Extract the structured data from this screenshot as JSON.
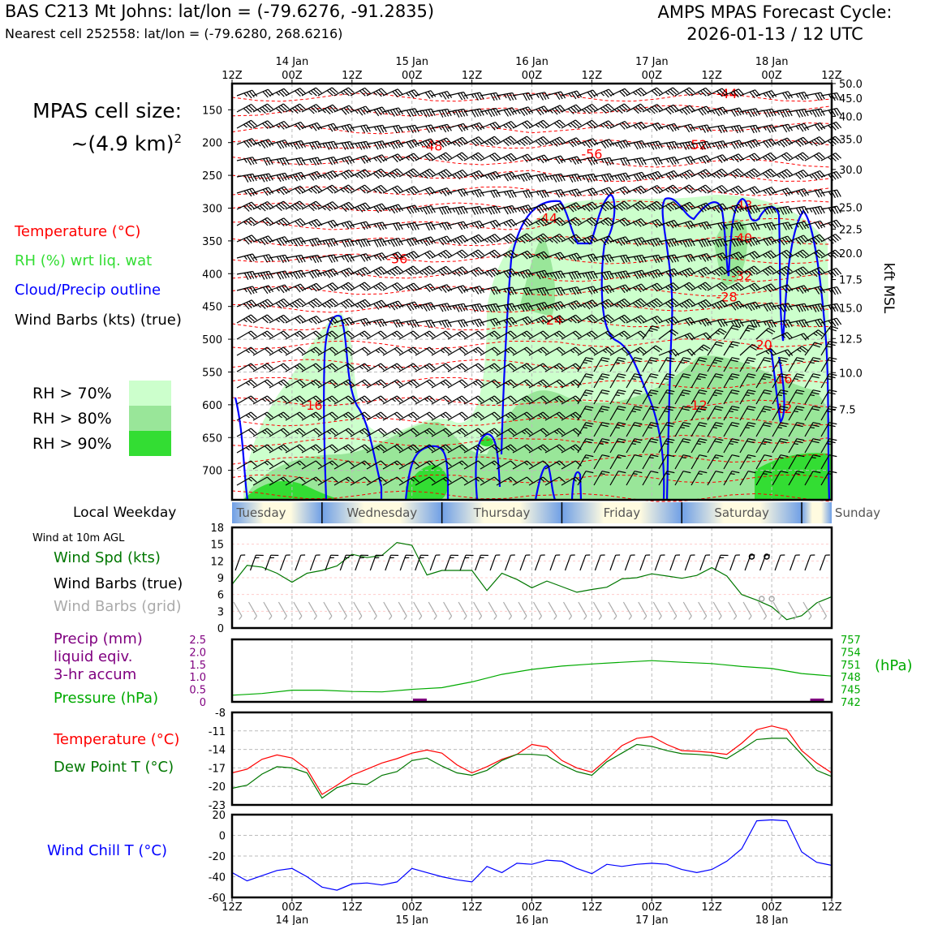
{
  "header": {
    "site_line": "BAS C213 Mt Johns: lat/lon = (-79.6276, -91.2835)",
    "cell_line": "Nearest cell 252558: lat/lon = (-79.6280, 268.6216)",
    "forecast_title": "AMPS MPAS Forecast Cycle:",
    "forecast_cycle": "2026-01-13 / 12 UTC"
  },
  "cell_size": {
    "line1": "MPAS cell size:",
    "line2": "~(4.9 km)",
    "sup": "2"
  },
  "legend": {
    "temperature": "Temperature (°C)",
    "rh": "RH (%) wrt liq. wat",
    "cloud": "Cloud/Precip outline",
    "wind": "Wind Barbs (kts) (true)",
    "rh70": "RH > 70%",
    "rh80": "RH > 80%",
    "rh90": "RH > 90%"
  },
  "colors": {
    "temperature": "#ff0000",
    "rh70": "#ccffcc",
    "rh80": "#99e699",
    "rh90": "#33dd33",
    "cloud": "#0000ff",
    "wind_speed": "#007700",
    "grid_barbs": "#aaaaaa",
    "precip": "#800080",
    "pressure": "#00aa00",
    "dewpoint": "#007700",
    "windchill": "#0000ff"
  },
  "weekday_band": {
    "label": "Local Weekday",
    "days": [
      "Tuesday",
      "Wednesday",
      "Thursday",
      "Friday",
      "Saturday",
      "Sunday"
    ]
  },
  "wind10m": {
    "heading": "Wind at 10m AGL",
    "spd_label": "Wind Spd (kts)",
    "barbs_true_label": "Wind Barbs (true)",
    "barbs_grid_label": "Wind Barbs (grid)"
  },
  "precip_pressure": {
    "precip_line1": "Precip (mm)",
    "precip_line2": "liquid eqiv.",
    "precip_line3": "3-hr accum",
    "pressure_label": "Pressure (hPa)",
    "pressure_unit": "(hPa)"
  },
  "temp_panel": {
    "temp_label": "Temperature (°C)",
    "dew_label": "Dew Point T (°C)"
  },
  "chill_panel": {
    "label": "Wind Chill T (°C)"
  },
  "chart_data": [
    {
      "type": "heatmap",
      "x_ticks_top": [
        "12Z",
        "00Z",
        "12Z",
        "00Z",
        "12Z",
        "00Z",
        "12Z",
        "00Z",
        "12Z",
        "00Z",
        "12Z"
      ],
      "x_dates": [
        "14 Jan",
        "15 Jan",
        "16 Jan",
        "17 Jan",
        "18 Jan"
      ],
      "y_pressure_ticks": [
        150,
        200,
        250,
        300,
        350,
        400,
        450,
        500,
        550,
        600,
        650,
        700
      ],
      "y_pressure_range": [
        110,
        745
      ],
      "y_kft_ticks": [
        "50.0",
        "45.0",
        "40.0",
        "35.0",
        "30.0",
        "25.0",
        "22.5",
        "20.0",
        "17.5",
        "15.0",
        "12.5",
        "10.0",
        "7.5"
      ],
      "y_kft_pressure": [
        110,
        132,
        160,
        195,
        241,
        299,
        332,
        369,
        409,
        452,
        499,
        551,
        607
      ],
      "ylabel_right": "kft MSL",
      "temperature_contour_labels": [
        {
          "text": "-44",
          "hour": 99,
          "p": 125
        },
        {
          "text": "-48",
          "hour": 40,
          "p": 205
        },
        {
          "text": "-56",
          "hour": 72,
          "p": 217
        },
        {
          "text": "-52",
          "hour": 93,
          "p": 203
        },
        {
          "text": "-48",
          "hour": 102,
          "p": 295
        },
        {
          "text": "-44",
          "hour": 63,
          "p": 315
        },
        {
          "text": "-40",
          "hour": 102,
          "p": 345
        },
        {
          "text": "-36",
          "hour": 33,
          "p": 377
        },
        {
          "text": "-32",
          "hour": 102,
          "p": 403
        },
        {
          "text": "-28",
          "hour": 99,
          "p": 435
        },
        {
          "text": "-24",
          "hour": 64,
          "p": 470
        },
        {
          "text": "-20",
          "hour": 106,
          "p": 508
        },
        {
          "text": "-16",
          "hour": 110,
          "p": 560
        },
        {
          "text": "-16",
          "hour": 16,
          "p": 600
        },
        {
          "text": "-12",
          "hour": 93,
          "p": 600
        },
        {
          "text": "-12",
          "hour": 110,
          "p": 605
        }
      ]
    },
    {
      "type": "line",
      "name": "wind10m",
      "hours": [
        0,
        3,
        6,
        9,
        12,
        15,
        18,
        21,
        24,
        27,
        30,
        33,
        36,
        39,
        42,
        45,
        48,
        51,
        54,
        57,
        60,
        63,
        66,
        69,
        72,
        75,
        78,
        81,
        84,
        87,
        90,
        93,
        96,
        99,
        102,
        105,
        108,
        111,
        114,
        117,
        120
      ],
      "series": [
        {
          "name": "Wind Spd (kts)",
          "values": [
            7.8,
            11.2,
            10.9,
            9.8,
            8.2,
            9.8,
            10.3,
            11.1,
            13.2,
            12.6,
            13.0,
            15.3,
            14.8,
            9.5,
            10.3,
            10.3,
            10.3,
            6.7,
            9.8,
            8.7,
            7.2,
            8.4,
            7.4,
            6.4,
            6.9,
            7.3,
            8.8,
            9.0,
            9.7,
            9.3,
            8.9,
            9.4,
            10.8,
            9.3,
            6.0,
            5.0,
            3.8,
            1.5,
            2.2,
            4.5,
            5.6
          ]
        }
      ],
      "calm_hours_true": [
        104,
        107
      ],
      "calm_hours_grid": [
        106,
        108
      ],
      "ylim": [
        0,
        18
      ],
      "yticks": [
        0,
        3,
        6,
        9,
        12,
        15,
        18
      ]
    },
    {
      "type": "line",
      "name": "precip_pressure",
      "precip": {
        "bars": [
          {
            "hour": 37.5,
            "value": 0.1
          },
          {
            "hour": 117,
            "value": 0.1
          }
        ],
        "ylim": [
          0,
          2.5
        ],
        "yticks": [
          "0",
          "0.5",
          "1.0",
          "1.5",
          "2.0",
          "2.5"
        ]
      },
      "pressure": {
        "hours": [
          0,
          6,
          12,
          18,
          24,
          30,
          36,
          42,
          48,
          54,
          60,
          66,
          72,
          78,
          84,
          90,
          96,
          102,
          108,
          114,
          120
        ],
        "values": [
          743.6,
          744.0,
          744.8,
          744.8,
          744.5,
          744.4,
          745.0,
          745.4,
          746.8,
          748.6,
          749.8,
          750.6,
          751.1,
          751.5,
          751.9,
          751.5,
          751.2,
          750.5,
          750.0,
          748.8,
          748.2
        ],
        "ylim": [
          742,
          757
        ],
        "yticks": [
          742,
          745,
          748,
          751,
          754,
          757
        ]
      }
    },
    {
      "type": "line",
      "name": "temperature",
      "hours": [
        0,
        3,
        6,
        9,
        12,
        15,
        18,
        21,
        24,
        27,
        30,
        33,
        36,
        39,
        42,
        45,
        48,
        51,
        54,
        57,
        60,
        63,
        66,
        69,
        72,
        75,
        78,
        81,
        84,
        87,
        90,
        93,
        96,
        99,
        102,
        105,
        108,
        111,
        114,
        117,
        120
      ],
      "series": [
        {
          "name": "Temperature (°C)",
          "values": [
            -17.8,
            -17.2,
            -15.6,
            -14.9,
            -15.4,
            -17.2,
            -21.3,
            -19.8,
            -18.2,
            -17.2,
            -16.2,
            -15.5,
            -14.6,
            -14.1,
            -14.6,
            -16.5,
            -17.8,
            -16.8,
            -15.6,
            -14.8,
            -13.2,
            -13.6,
            -15.8,
            -17.0,
            -17.7,
            -15.6,
            -13.4,
            -12.2,
            -11.9,
            -13.2,
            -14.2,
            -14.3,
            -14.5,
            -14.8,
            -13.0,
            -10.8,
            -10.2,
            -10.8,
            -14.2,
            -16.2,
            -17.8
          ]
        },
        {
          "name": "Dew Point T (°C)",
          "values": [
            -20.3,
            -19.8,
            -18.0,
            -16.8,
            -17.0,
            -17.8,
            -21.9,
            -20.2,
            -19.5,
            -19.7,
            -18.2,
            -17.6,
            -15.8,
            -15.4,
            -16.7,
            -17.8,
            -18.2,
            -17.4,
            -15.8,
            -14.8,
            -14.8,
            -15.0,
            -16.5,
            -17.6,
            -18.2,
            -16.0,
            -14.6,
            -13.2,
            -13.5,
            -14.2,
            -14.7,
            -14.8,
            -15.0,
            -15.5,
            -14.0,
            -12.4,
            -12.2,
            -12.2,
            -14.8,
            -17.4,
            -18.4
          ]
        }
      ],
      "ylim": [
        -23,
        -8
      ],
      "yticks": [
        -23,
        -20,
        -17,
        -14,
        -11,
        -8
      ]
    },
    {
      "type": "line",
      "name": "windchill",
      "hours": [
        0,
        3,
        6,
        9,
        12,
        15,
        18,
        21,
        24,
        27,
        30,
        33,
        36,
        39,
        42,
        45,
        48,
        51,
        54,
        57,
        60,
        63,
        66,
        69,
        72,
        75,
        78,
        81,
        84,
        87,
        90,
        93,
        96,
        99,
        102,
        105,
        108,
        111,
        114,
        117,
        120
      ],
      "series": [
        {
          "name": "Wind Chill T (°C)",
          "values": [
            -36,
            -44,
            -39,
            -34,
            -32,
            -40,
            -50,
            -53,
            -47,
            -46,
            -48,
            -45,
            -32,
            -36,
            -40,
            -43,
            -45,
            -30,
            -36,
            -27,
            -28,
            -24,
            -25,
            -32,
            -37,
            -28,
            -30,
            -28,
            -27,
            -28,
            -33,
            -36,
            -33,
            -25,
            -13,
            14,
            15,
            14,
            -16,
            -26,
            -29
          ]
        }
      ],
      "ylim": [
        -60,
        20
      ],
      "yticks": [
        -60,
        -40,
        -20,
        0,
        20
      ]
    }
  ]
}
